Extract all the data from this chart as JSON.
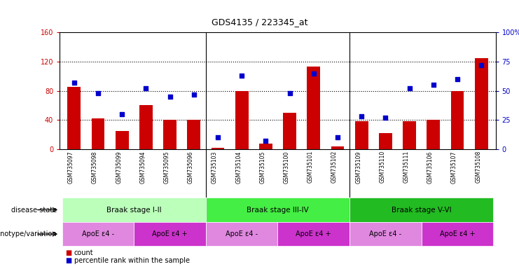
{
  "title": "GDS4135 / 223345_at",
  "samples": [
    "GSM735097",
    "GSM735098",
    "GSM735099",
    "GSM735094",
    "GSM735095",
    "GSM735096",
    "GSM735103",
    "GSM735104",
    "GSM735105",
    "GSM735100",
    "GSM735101",
    "GSM735102",
    "GSM735109",
    "GSM735110",
    "GSM735111",
    "GSM735106",
    "GSM735107",
    "GSM735108"
  ],
  "counts": [
    85,
    42,
    25,
    60,
    40,
    40,
    2,
    80,
    8,
    50,
    113,
    4,
    38,
    22,
    38,
    40,
    80,
    125
  ],
  "percentile_ranks": [
    57,
    48,
    30,
    52,
    45,
    47,
    10,
    63,
    7,
    48,
    65,
    10,
    28,
    27,
    52,
    55,
    60,
    72
  ],
  "ylim_left": [
    0,
    160
  ],
  "ylim_right": [
    0,
    100
  ],
  "yticks_left": [
    0,
    40,
    80,
    120,
    160
  ],
  "ytick_labels_right": [
    "0",
    "25",
    "50",
    "75",
    "100%"
  ],
  "bar_color": "#cc0000",
  "dot_color": "#0000cc",
  "bg_gray": "#c8c8c8",
  "disease_state_groups": [
    {
      "name": "Braak stage I-II",
      "start": 0,
      "end": 5,
      "color": "#bbffbb"
    },
    {
      "name": "Braak stage III-IV",
      "start": 6,
      "end": 11,
      "color": "#44ee44"
    },
    {
      "name": "Braak stage V-VI",
      "start": 12,
      "end": 17,
      "color": "#22bb22"
    }
  ],
  "genotype_groups": [
    {
      "name": "ApoE ε4 -",
      "start": 0,
      "end": 2,
      "color": "#e088e0"
    },
    {
      "name": "ApoE ε4 +",
      "start": 3,
      "end": 5,
      "color": "#cc33cc"
    },
    {
      "name": "ApoE ε4 -",
      "start": 6,
      "end": 8,
      "color": "#e088e0"
    },
    {
      "name": "ApoE ε4 +",
      "start": 9,
      "end": 11,
      "color": "#cc33cc"
    },
    {
      "name": "ApoE ε4 -",
      "start": 12,
      "end": 14,
      "color": "#e088e0"
    },
    {
      "name": "ApoE ε4 +",
      "start": 15,
      "end": 17,
      "color": "#cc33cc"
    }
  ],
  "n_samples": 18,
  "group_boundaries": [
    5.5,
    11.5
  ],
  "subgroup_boundaries": [
    2.5,
    8.5,
    14.5
  ]
}
